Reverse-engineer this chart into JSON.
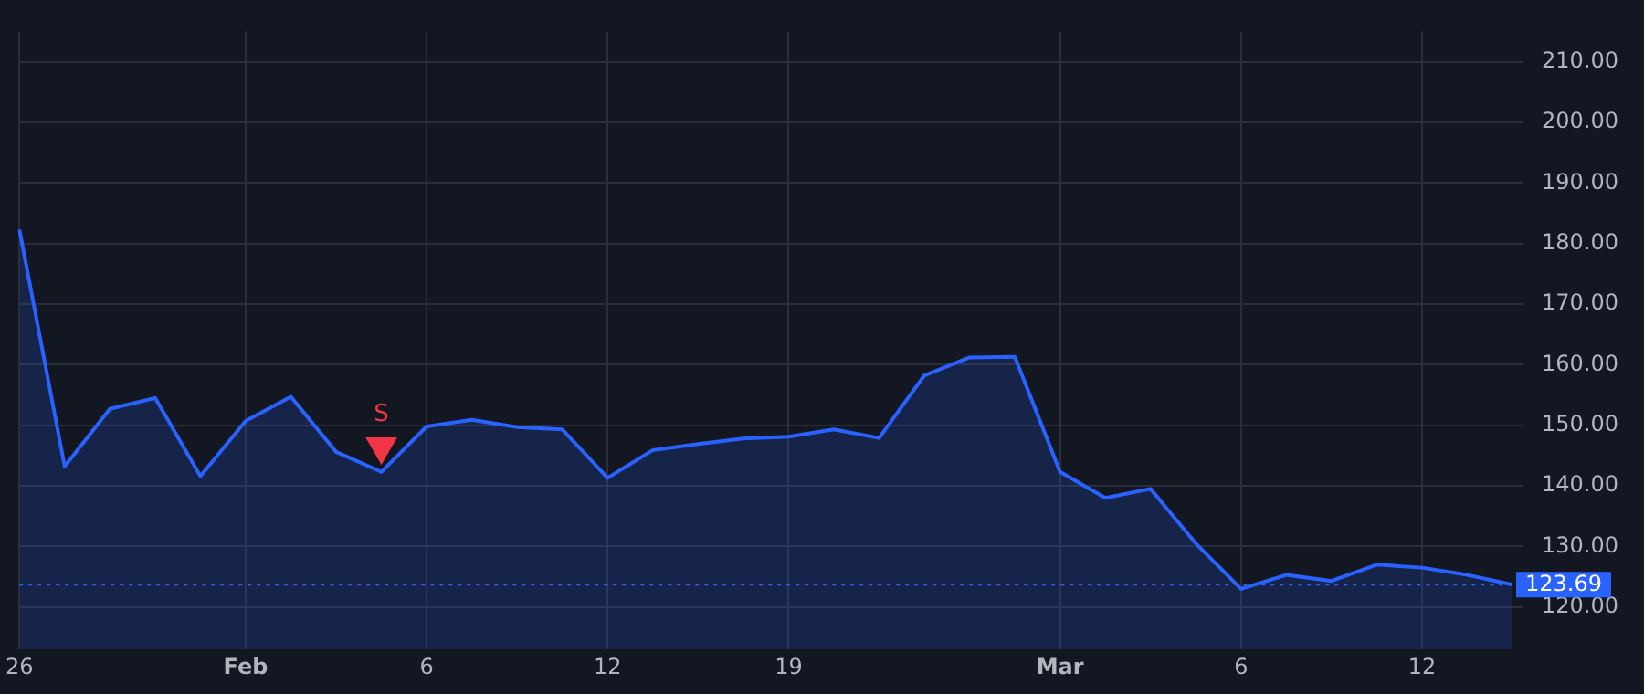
{
  "chart_data": {
    "type": "area",
    "categories": [
      "26",
      null,
      null,
      null,
      null,
      "Feb",
      null,
      null,
      null,
      "6",
      null,
      null,
      null,
      "12",
      null,
      null,
      null,
      "19",
      null,
      null,
      null,
      null,
      null,
      "Mar",
      null,
      null,
      null,
      "6",
      null,
      null,
      null,
      "12",
      null,
      null
    ],
    "series": [
      {
        "color": "#2962ff",
        "values": [
          182.3,
          143.2,
          152.7,
          154.5,
          141.6,
          150.7,
          154.7,
          145.6,
          142.3,
          149.8,
          150.9,
          149.7,
          149.3,
          141.3,
          145.9,
          146.9,
          147.8,
          148.1,
          149.3,
          147.9,
          158.2,
          161.2,
          161.3,
          142.3,
          138.0,
          139.5,
          130.5,
          123.0,
          125.3,
          124.3,
          127.0,
          126.5,
          125.3,
          123.69
        ]
      },
      {
        "type": "scatter",
        "color": "#f23645",
        "marker": "triangle",
        "values": [
          null,
          null,
          null,
          null,
          null,
          null,
          null,
          null,
          146.5,
          null,
          null,
          null,
          null,
          null,
          null,
          null,
          null,
          null,
          null,
          null,
          null,
          null,
          null,
          null,
          null,
          null,
          null,
          null,
          null,
          null,
          null,
          null,
          null,
          null
        ],
        "value_labels": [
          null,
          null,
          null,
          null,
          null,
          null,
          null,
          null,
          "S",
          null,
          null,
          null,
          null,
          null,
          null,
          null,
          null,
          null,
          null,
          null,
          null,
          null,
          null,
          null,
          null,
          null,
          null,
          null,
          null,
          null,
          null,
          null,
          null,
          null
        ]
      }
    ],
    "ylim": [
      113,
      215
    ],
    "yticks": [
      {
        "value": 120,
        "label": "120.00"
      },
      {
        "value": 130,
        "label": "130.00"
      },
      {
        "value": 140,
        "label": "140.00"
      },
      {
        "value": 150,
        "label": "150.00"
      },
      {
        "value": 160,
        "label": "160.00"
      },
      {
        "value": 170,
        "label": "170.00"
      },
      {
        "value": 180,
        "label": "180.00"
      },
      {
        "value": 190,
        "label": "190.00"
      },
      {
        "value": 200,
        "label": "200.00"
      },
      {
        "value": 210,
        "label": "210.00"
      }
    ],
    "ref_lines": [
      {
        "axis": "y",
        "value": 123.69,
        "label": "123.69",
        "color": "#2962ff",
        "line_style": "dotted"
      }
    ],
    "grid": true,
    "legend": false
  }
}
